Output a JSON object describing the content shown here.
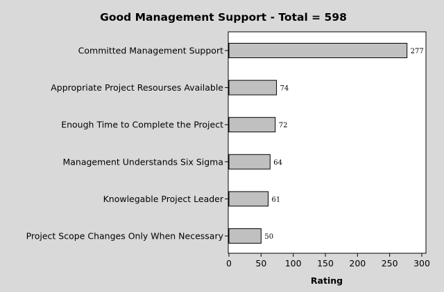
{
  "chart_data": {
    "type": "bar",
    "orientation": "horizontal",
    "title": "Good Management Support - Total = 598",
    "xlabel": "Rating",
    "ylabel": "",
    "categories": [
      "Committed Management Support",
      "Appropriate Project Resourses Available",
      "Enough Time to Complete the Project",
      "Management Understands Six Sigma",
      "Knowlegable Project Leader",
      "Project Scope Changes Only When Necessary"
    ],
    "values": [
      277,
      74,
      72,
      64,
      61,
      50
    ],
    "xlim": [
      0,
      300
    ],
    "xticks": [
      0,
      50,
      100,
      150,
      200,
      250,
      300
    ],
    "grid": false,
    "legend": "none",
    "colors": {
      "background": "#d9d9d9",
      "plot_background": "#ffffff",
      "bar_fill": "#c0c0c0",
      "bar_stroke": "#000000"
    }
  }
}
